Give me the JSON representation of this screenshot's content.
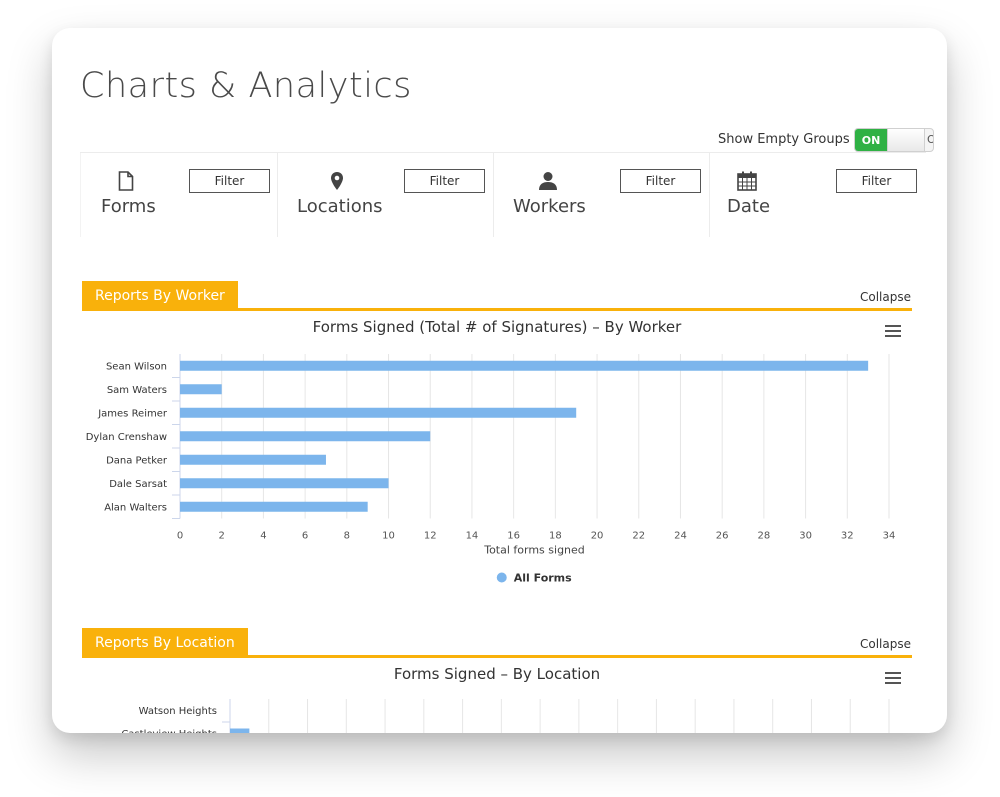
{
  "page": {
    "title": "Charts & Analytics"
  },
  "toggle": {
    "label": "Show Empty Groups",
    "on_text": "ON",
    "off_text": "O"
  },
  "filters": [
    {
      "name": "Forms",
      "icon": "file-icon",
      "button": "Filter"
    },
    {
      "name": "Locations",
      "icon": "map-pin-icon",
      "button": "Filter"
    },
    {
      "name": "Workers",
      "icon": "user-icon",
      "button": "Filter"
    },
    {
      "name": "Date",
      "icon": "calendar-icon",
      "button": "Filter"
    }
  ],
  "colors": {
    "accent": "#f9b10b",
    "bar": "#7cb5ec",
    "toggle_on": "#2fb144"
  },
  "sections": {
    "worker": {
      "tab": "Reports By Worker",
      "collapse": "Collapse"
    },
    "location": {
      "tab": "Reports By Location",
      "collapse": "Collapse"
    }
  },
  "chart_data": [
    {
      "type": "bar",
      "orientation": "horizontal",
      "title": "Forms Signed (Total # of Signatures) – By Worker",
      "categories": [
        "Sean Wilson",
        "Sam Waters",
        "James Reimer",
        "Dylan Crenshaw",
        "Dana Petker",
        "Dale Sarsat",
        "Alan Walters"
      ],
      "series": [
        {
          "name": "All Forms",
          "values": [
            33,
            2,
            19,
            12,
            7,
            10,
            9
          ]
        }
      ],
      "xlabel": "Total forms signed",
      "ylabel": "",
      "xlim": [
        0,
        34
      ],
      "ticks": [
        "0",
        "2",
        "4",
        "6",
        "8",
        "10",
        "12",
        "14",
        "16",
        "18",
        "20",
        "22",
        "24",
        "26",
        "28",
        "30",
        "32",
        "34"
      ],
      "grid": true,
      "legend": "bottom-center"
    },
    {
      "type": "bar",
      "orientation": "horizontal",
      "title": "Forms Signed – By Location",
      "categories": [
        "Watson Heights",
        "Castleview Heights"
      ],
      "series": [
        {
          "name": "",
          "values": [
            0,
            1
          ]
        }
      ],
      "grid": true
    }
  ]
}
